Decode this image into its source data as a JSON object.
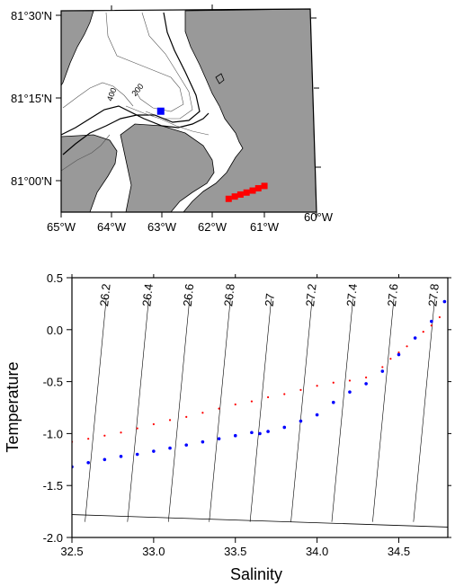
{
  "colors": {
    "land": "#999999",
    "water": "#ffffff",
    "station_marker": "#0000ff",
    "section_marker": "#ff0000",
    "series_red": "#ff0000",
    "series_blue": "#0000ff"
  },
  "map": {
    "lat_labels": [
      "81°30'N",
      "81°15'N",
      "81°00'N"
    ],
    "lon_labels": [
      "65°W",
      "64°W",
      "63°W",
      "62°W",
      "61°W",
      "60°W"
    ],
    "contour_labels": [
      "400",
      "200"
    ],
    "blue_station": {
      "lon": -63.05,
      "lat": 81.21
    },
    "red_section": [
      {
        "lon": -61.72,
        "lat": 80.945
      },
      {
        "lon": -61.6,
        "lat": 80.952
      },
      {
        "lon": -61.49,
        "lat": 80.958
      },
      {
        "lon": -61.37,
        "lat": 80.964
      },
      {
        "lon": -61.25,
        "lat": 80.97
      },
      {
        "lon": -61.14,
        "lat": 80.977
      },
      {
        "lon": -61.02,
        "lat": 80.984
      }
    ]
  },
  "chart_data": {
    "type": "scatter",
    "xlabel": "Salinity",
    "ylabel": "Temperature",
    "xlim": [
      32.5,
      34.8
    ],
    "ylim": [
      -2.0,
      0.5
    ],
    "xticks": [
      "32.5",
      "33.0",
      "33.5",
      "34.0",
      "34.5"
    ],
    "yticks": [
      "0.5",
      "0.0",
      "-0.5",
      "-1.0",
      "-1.5",
      "-2.0"
    ],
    "isopycnal_labels": [
      "26.2",
      "26.4",
      "26.6",
      "26.8",
      "27",
      "27.2",
      "27.4",
      "27.6",
      "27.8"
    ],
    "freezing_line": [
      [
        32.5,
        -1.78
      ],
      [
        34.8,
        -1.9
      ]
    ],
    "series": [
      {
        "color": "red",
        "points": [
          [
            32.5,
            -1.08
          ],
          [
            32.6,
            -1.05
          ],
          [
            32.7,
            -1.02
          ],
          [
            32.8,
            -0.99
          ],
          [
            32.9,
            -0.95
          ],
          [
            33.0,
            -0.91
          ],
          [
            33.1,
            -0.87
          ],
          [
            33.2,
            -0.84
          ],
          [
            33.3,
            -0.8
          ],
          [
            33.4,
            -0.76
          ],
          [
            33.5,
            -0.72
          ],
          [
            33.6,
            -0.69
          ],
          [
            33.7,
            -0.65
          ],
          [
            33.8,
            -0.62
          ],
          [
            33.9,
            -0.58
          ],
          [
            34.0,
            -0.54
          ],
          [
            34.1,
            -0.51
          ],
          [
            34.2,
            -0.49
          ],
          [
            34.3,
            -0.46
          ],
          [
            34.4,
            -0.36
          ],
          [
            34.45,
            -0.28
          ],
          [
            34.5,
            -0.22
          ],
          [
            34.55,
            -0.16
          ],
          [
            34.6,
            -0.08
          ],
          [
            34.65,
            -0.02
          ],
          [
            34.7,
            0.04
          ],
          [
            34.75,
            0.12
          ]
        ]
      },
      {
        "color": "blue",
        "points": [
          [
            32.5,
            -1.32
          ],
          [
            32.6,
            -1.28
          ],
          [
            32.7,
            -1.25
          ],
          [
            32.8,
            -1.22
          ],
          [
            32.9,
            -1.2
          ],
          [
            33.0,
            -1.17
          ],
          [
            33.1,
            -1.14
          ],
          [
            33.2,
            -1.11
          ],
          [
            33.3,
            -1.08
          ],
          [
            33.4,
            -1.05
          ],
          [
            33.5,
            -1.02
          ],
          [
            33.6,
            -0.99
          ],
          [
            33.65,
            -1.0
          ],
          [
            33.7,
            -0.98
          ],
          [
            33.8,
            -0.94
          ],
          [
            33.9,
            -0.88
          ],
          [
            34.0,
            -0.82
          ],
          [
            34.1,
            -0.7
          ],
          [
            34.2,
            -0.6
          ],
          [
            34.3,
            -0.52
          ],
          [
            34.4,
            -0.4
          ],
          [
            34.5,
            -0.24
          ],
          [
            34.6,
            -0.08
          ],
          [
            34.7,
            0.08
          ],
          [
            34.78,
            0.27
          ]
        ]
      }
    ]
  }
}
